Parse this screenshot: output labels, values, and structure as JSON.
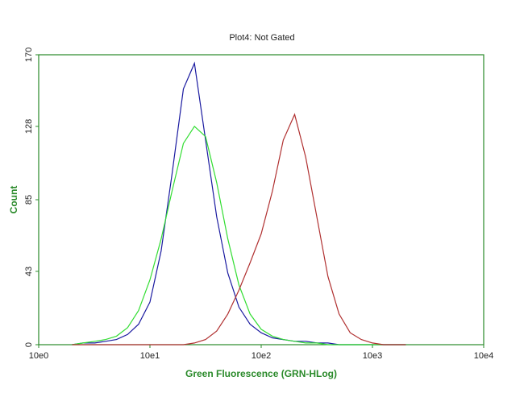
{
  "chart_data": {
    "type": "line",
    "title": "Plot4:  Not Gated",
    "x_label": "Green Fluorescence (GRN-HLog)",
    "y_label": "Count",
    "log_x": true,
    "xlim": [
      1,
      10000
    ],
    "xticks": [
      {
        "value": 1,
        "label": "10e0"
      },
      {
        "value": 10,
        "label": "10e1"
      },
      {
        "value": 100,
        "label": "10e2"
      },
      {
        "value": 1000,
        "label": "10e3"
      },
      {
        "value": 10000,
        "label": "10e4"
      }
    ],
    "ylim": [
      0,
      170
    ],
    "yticks": [
      0,
      43,
      85,
      128,
      170
    ],
    "x": [
      2.0,
      2.5,
      3.2,
      4.0,
      5.0,
      6.3,
      7.9,
      10,
      12.6,
      15.8,
      20,
      25.1,
      31.6,
      39.8,
      50.1,
      63.1,
      79.4,
      100,
      126,
      158,
      200,
      251,
      316,
      398,
      501,
      631,
      794,
      1000,
      1259,
      1585,
      1995
    ],
    "series": [
      {
        "name": "Blue",
        "color": "#1a1aa0",
        "values": [
          0,
          1,
          1,
          2,
          3,
          6,
          12,
          25,
          55,
          100,
          150,
          165,
          120,
          75,
          42,
          22,
          12,
          7,
          4,
          3,
          2,
          2,
          1,
          1,
          0,
          0,
          0,
          0,
          0,
          0,
          0
        ]
      },
      {
        "name": "Green",
        "color": "#33dd33",
        "values": [
          0,
          1,
          2,
          3,
          5,
          10,
          20,
          38,
          62,
          90,
          118,
          128,
          122,
          95,
          62,
          35,
          18,
          9,
          5,
          3,
          2,
          1,
          1,
          0,
          0,
          0,
          0,
          0,
          0,
          0,
          0
        ]
      },
      {
        "name": "Red",
        "color": "#b03030",
        "values": [
          0,
          0,
          0,
          0,
          0,
          0,
          0,
          0,
          0,
          0,
          0,
          1,
          3,
          8,
          18,
          32,
          48,
          65,
          90,
          120,
          135,
          110,
          75,
          40,
          18,
          7,
          3,
          1,
          0,
          0,
          0
        ]
      }
    ]
  }
}
